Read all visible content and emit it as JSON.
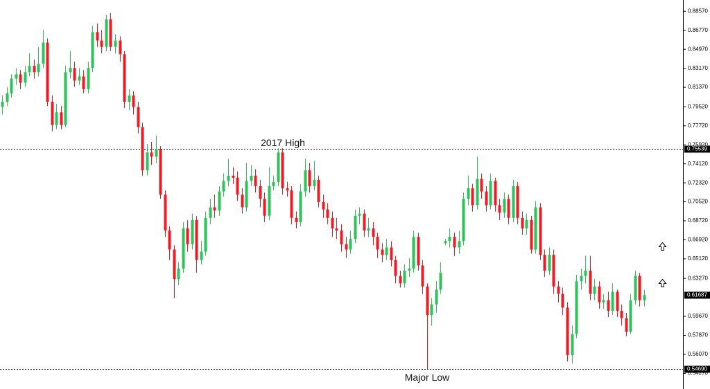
{
  "chart_data": {
    "type": "candlestick",
    "up_color": "#2fc25b",
    "down_color": "#ec1c24",
    "ylim": [
      0.5279,
      0.8964
    ],
    "yticks": [
      {
        "value": 0.8857,
        "label": "0.88570"
      },
      {
        "value": 0.8677,
        "label": "0.86770"
      },
      {
        "value": 0.8497,
        "label": "0.84970"
      },
      {
        "value": 0.8317,
        "label": "0.83170"
      },
      {
        "value": 0.8137,
        "label": "0.81370"
      },
      {
        "value": 0.7952,
        "label": "0.79520"
      },
      {
        "value": 0.7772,
        "label": "0.77720"
      },
      {
        "value": 0.7592,
        "label": "0.75920"
      },
      {
        "value": 0.7412,
        "label": "0.74120"
      },
      {
        "value": 0.7232,
        "label": "0.72320"
      },
      {
        "value": 0.7052,
        "label": "0.70520"
      },
      {
        "value": 0.6872,
        "label": "0.68720"
      },
      {
        "value": 0.6692,
        "label": "0.66920"
      },
      {
        "value": 0.6512,
        "label": "0.65120"
      },
      {
        "value": 0.6327,
        "label": "0.63270"
      },
      {
        "value": 0.5967,
        "label": "0.59670"
      },
      {
        "value": 0.5787,
        "label": "0.57870"
      },
      {
        "value": 0.5607,
        "label": "0.56070"
      },
      {
        "value": 0.5427,
        "label": "0.54270"
      }
    ],
    "levels": [
      {
        "price": 0.75539,
        "annotation": "2017 High"
      },
      {
        "price": {
          "value": 0.5469,
          "label": "0.54690"
        },
        "annotation": "Major Low"
      }
    ],
    "open": [
      0.795,
      0.8,
      0.808,
      0.822,
      0.826,
      0.818,
      0.828,
      0.834,
      0.828,
      0.836,
      0.856,
      0.8,
      0.778,
      0.79,
      0.778,
      0.828,
      0.832,
      0.82,
      0.824,
      0.812,
      0.832,
      0.866,
      0.858,
      0.852,
      0.878,
      0.852,
      0.858,
      0.845,
      0.8,
      0.806,
      0.795,
      0.776,
      0.735,
      0.752,
      0.748,
      0.755,
      0.712,
      0.678,
      0.66,
      0.632,
      0.642,
      0.68,
      0.665,
      0.688,
      0.65,
      0.658,
      0.69,
      0.7,
      0.697,
      0.715,
      0.725,
      0.73,
      0.728,
      0.712,
      0.7,
      0.725,
      0.73,
      0.72,
      0.708,
      0.692,
      0.72,
      0.724,
      0.752,
      0.718,
      0.716,
      0.69,
      0.686,
      0.715,
      0.735,
      0.72,
      0.726,
      0.705,
      0.698,
      0.69,
      0.68,
      0.678,
      0.665,
      0.66,
      0.67,
      0.692,
      0.694,
      0.678,
      0.68,
      0.672,
      0.66,
      0.655,
      0.662,
      0.65,
      0.635,
      0.628,
      0.64,
      0.642,
      0.672,
      0.645,
      0.625,
      0.598,
      0.608,
      0.622,
      0.666,
      0.668,
      0.672,
      0.662,
      0.668,
      0.708,
      0.718,
      0.702,
      0.727,
      0.715,
      0.702,
      0.725,
      0.702,
      0.695,
      0.708,
      0.69,
      0.72,
      0.69,
      0.68,
      0.688,
      0.66,
      0.7,
      0.655,
      0.64,
      0.655,
      0.625,
      0.618,
      0.605,
      0.56,
      0.58,
      0.63,
      0.635,
      0.64,
      0.618,
      0.625,
      0.61,
      0.612,
      0.602,
      0.62,
      0.602,
      0.595,
      0.582,
      0.612,
      0.635,
      0.612
    ],
    "high": [
      0.806,
      0.814,
      0.826,
      0.832,
      0.83,
      0.834,
      0.846,
      0.84,
      0.852,
      0.868,
      0.86,
      0.806,
      0.798,
      0.796,
      0.834,
      0.848,
      0.838,
      0.832,
      0.83,
      0.838,
      0.872,
      0.874,
      0.868,
      0.882,
      0.884,
      0.864,
      0.862,
      0.848,
      0.812,
      0.81,
      0.8,
      0.78,
      0.76,
      0.762,
      0.768,
      0.758,
      0.716,
      0.682,
      0.664,
      0.648,
      0.686,
      0.688,
      0.694,
      0.692,
      0.668,
      0.696,
      0.708,
      0.712,
      0.72,
      0.732,
      0.746,
      0.738,
      0.734,
      0.718,
      0.742,
      0.74,
      0.736,
      0.726,
      0.714,
      0.738,
      0.73,
      0.756,
      0.756,
      0.724,
      0.72,
      0.696,
      0.722,
      0.746,
      0.742,
      0.744,
      0.73,
      0.712,
      0.704,
      0.696,
      0.69,
      0.684,
      0.672,
      0.678,
      0.698,
      0.7,
      0.698,
      0.69,
      0.686,
      0.676,
      0.666,
      0.67,
      0.668,
      0.654,
      0.64,
      0.646,
      0.652,
      0.678,
      0.676,
      0.65,
      0.628,
      0.614,
      0.63,
      0.648,
      0.67,
      0.68,
      0.676,
      0.678,
      0.714,
      0.73,
      0.722,
      0.748,
      0.732,
      0.72,
      0.732,
      0.728,
      0.708,
      0.714,
      0.712,
      0.726,
      0.724,
      0.696,
      0.694,
      0.692,
      0.706,
      0.704,
      0.66,
      0.662,
      0.66,
      0.63,
      0.624,
      0.61,
      0.588,
      0.636,
      0.642,
      0.654,
      0.654,
      0.632,
      0.63,
      0.618,
      0.62,
      0.628,
      0.622,
      0.608,
      0.6,
      0.618,
      0.64,
      0.638,
      0.622
    ],
    "low": [
      0.788,
      0.796,
      0.804,
      0.816,
      0.812,
      0.814,
      0.824,
      0.822,
      0.824,
      0.832,
      0.796,
      0.772,
      0.774,
      0.774,
      0.776,
      0.822,
      0.814,
      0.816,
      0.808,
      0.808,
      0.828,
      0.852,
      0.846,
      0.848,
      0.848,
      0.846,
      0.838,
      0.794,
      0.792,
      0.788,
      0.77,
      0.73,
      0.73,
      0.74,
      0.742,
      0.708,
      0.672,
      0.65,
      0.614,
      0.626,
      0.638,
      0.658,
      0.66,
      0.638,
      0.646,
      0.654,
      0.684,
      0.69,
      0.692,
      0.71,
      0.72,
      0.722,
      0.706,
      0.694,
      0.696,
      0.72,
      0.714,
      0.7,
      0.686,
      0.688,
      0.716,
      0.72,
      0.712,
      0.71,
      0.684,
      0.68,
      0.682,
      0.71,
      0.714,
      0.716,
      0.7,
      0.69,
      0.684,
      0.672,
      0.67,
      0.658,
      0.652,
      0.656,
      0.666,
      0.684,
      0.672,
      0.672,
      0.664,
      0.652,
      0.648,
      0.65,
      0.644,
      0.628,
      0.624,
      0.624,
      0.634,
      0.638,
      0.64,
      0.618,
      0.5469,
      0.588,
      0.6,
      0.618,
      0.664,
      0.662,
      0.654,
      0.656,
      0.664,
      0.702,
      0.696,
      0.698,
      0.708,
      0.696,
      0.698,
      0.696,
      0.688,
      0.69,
      0.684,
      0.686,
      0.684,
      0.674,
      0.674,
      0.656,
      0.656,
      0.65,
      0.634,
      0.636,
      0.618,
      0.61,
      0.598,
      0.554,
      0.552,
      0.576,
      0.622,
      0.628,
      0.612,
      0.612,
      0.604,
      0.604,
      0.596,
      0.598,
      0.596,
      0.588,
      0.578,
      0.58,
      0.608,
      0.606,
      0.606
    ],
    "close": [
      0.8,
      0.808,
      0.822,
      0.826,
      0.818,
      0.828,
      0.834,
      0.828,
      0.836,
      0.856,
      0.8,
      0.778,
      0.79,
      0.778,
      0.828,
      0.832,
      0.82,
      0.824,
      0.812,
      0.832,
      0.866,
      0.858,
      0.852,
      0.878,
      0.852,
      0.858,
      0.845,
      0.8,
      0.806,
      0.795,
      0.776,
      0.735,
      0.752,
      0.748,
      0.755,
      0.712,
      0.678,
      0.66,
      0.632,
      0.642,
      0.68,
      0.665,
      0.688,
      0.65,
      0.658,
      0.69,
      0.7,
      0.697,
      0.715,
      0.725,
      0.73,
      0.728,
      0.712,
      0.7,
      0.725,
      0.73,
      0.72,
      0.708,
      0.692,
      0.72,
      0.724,
      0.752,
      0.718,
      0.716,
      0.69,
      0.686,
      0.715,
      0.735,
      0.72,
      0.726,
      0.705,
      0.698,
      0.69,
      0.68,
      0.678,
      0.665,
      0.66,
      0.67,
      0.692,
      0.694,
      0.678,
      0.68,
      0.672,
      0.66,
      0.655,
      0.662,
      0.65,
      0.635,
      0.628,
      0.64,
      0.642,
      0.672,
      0.645,
      0.625,
      0.598,
      0.608,
      0.622,
      0.638,
      0.668,
      0.672,
      0.662,
      0.668,
      0.708,
      0.718,
      0.702,
      0.727,
      0.715,
      0.702,
      0.725,
      0.702,
      0.695,
      0.708,
      0.69,
      0.72,
      0.69,
      0.68,
      0.688,
      0.66,
      0.7,
      0.655,
      0.64,
      0.655,
      0.625,
      0.618,
      0.605,
      0.56,
      0.58,
      0.63,
      0.635,
      0.64,
      0.618,
      0.625,
      0.61,
      0.612,
      0.602,
      0.62,
      0.602,
      0.595,
      0.582,
      0.612,
      0.635,
      0.612,
      0.61687
    ]
  }
}
